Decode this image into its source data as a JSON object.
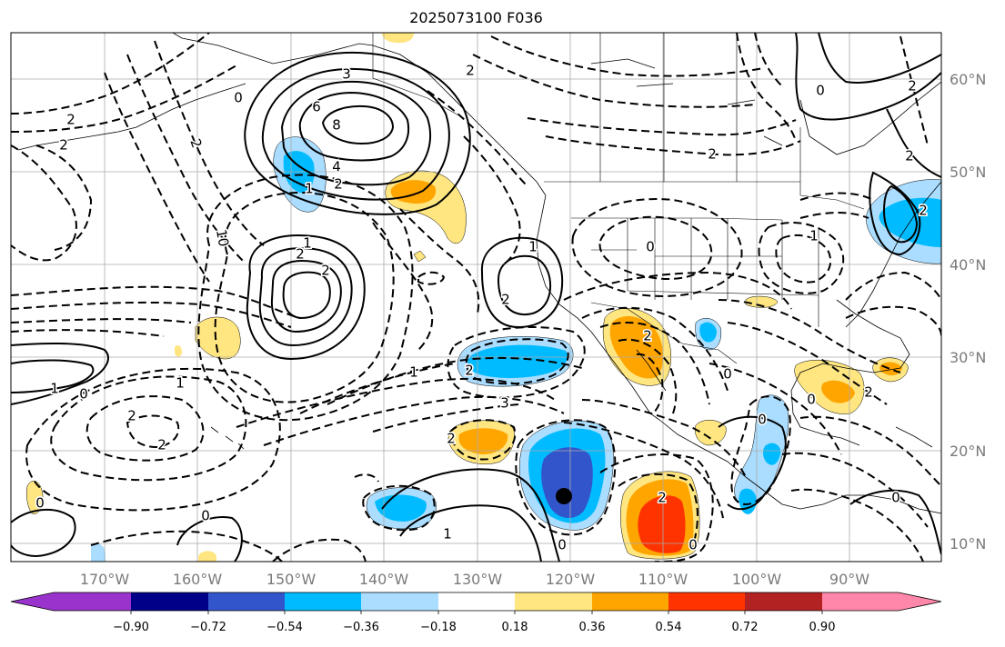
{
  "title": "2025073100 F036",
  "latitude_labels": [
    "60°N",
    "50°N",
    "40°N",
    "30°N",
    "20°N",
    "10°N"
  ],
  "longitude_labels": [
    "170°W",
    "160°W",
    "150°W",
    "140°W",
    "130°W",
    "120°W",
    "110°W",
    "100°W",
    "90°W"
  ],
  "colorbar": {
    "colors": [
      "#9933cc",
      "#000088",
      "#3355cc",
      "#00bbff",
      "#aaddff",
      "#ffffff",
      "#ffe680",
      "#ffa500",
      "#ff3300",
      "#b22222",
      "#ff88aa"
    ],
    "tick_labels": [
      "−0.90",
      "−0.72",
      "−0.54",
      "−0.36",
      "−0.18",
      "0.18",
      "0.36",
      "0.54",
      "0.72",
      "0.90"
    ]
  },
  "contour_labels": [
    "2",
    "3",
    "6",
    "8",
    "2",
    "4",
    "2",
    "1",
    "1",
    "2",
    "2",
    "1",
    "1",
    "0",
    "2",
    "1",
    "2",
    "2",
    "3",
    "2",
    "1",
    "0",
    "1",
    "2",
    "2",
    "0",
    "2",
    "0",
    "0",
    "0",
    "0",
    "0",
    "2",
    "2",
    "2",
    "2",
    "2",
    "0",
    "10",
    "2",
    "0",
    "1",
    "2",
    "0",
    "0"
  ],
  "colors": {
    "contour": "#000000",
    "grid": "#aaaaaa",
    "coastline": "#000000",
    "border": "#000000",
    "marker": "#000000"
  }
}
